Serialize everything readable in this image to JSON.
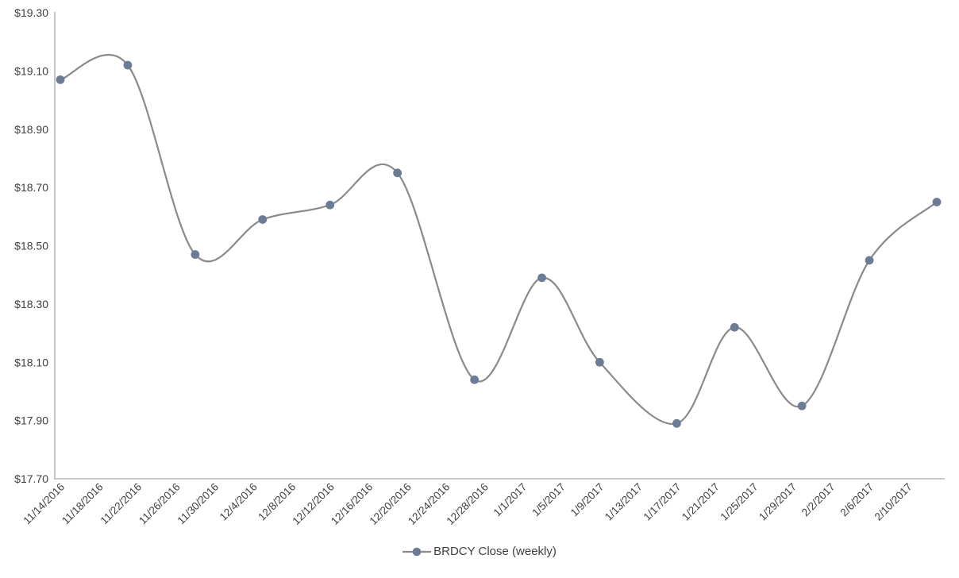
{
  "chart_data": {
    "type": "line",
    "title": "",
    "smooth": true,
    "grid": false,
    "legend": {
      "label": "BRDCY Close (weekly)",
      "position": "bottom-center"
    },
    "series": [
      {
        "name": "BRDCY Close (weekly)",
        "x": [
          "11/14/2016",
          "11/21/2016",
          "11/28/2016",
          "12/5/2016",
          "12/12/2016",
          "12/19/2016",
          "12/27/2016",
          "1/3/2017",
          "1/9/2017",
          "1/17/2017",
          "1/23/2017",
          "1/30/2017",
          "2/6/2017",
          "2/13/2017"
        ],
        "values": [
          19.07,
          19.12,
          18.47,
          18.59,
          18.64,
          18.75,
          18.04,
          18.39,
          18.1,
          17.89,
          18.22,
          17.95,
          18.45,
          18.65
        ]
      }
    ],
    "x_tick_labels": [
      "11/14/2016",
      "11/18/2016",
      "11/22/2016",
      "11/26/2016",
      "11/30/2016",
      "12/4/2016",
      "12/8/2016",
      "12/12/2016",
      "12/16/2016",
      "12/20/2016",
      "12/24/2016",
      "12/28/2016",
      "1/1/2017",
      "1/5/2017",
      "1/9/2017",
      "1/13/2017",
      "1/17/2017",
      "1/21/2017",
      "1/25/2017",
      "1/29/2017",
      "2/2/2017",
      "2/6/2017",
      "2/10/2017"
    ],
    "y_tick_labels": [
      "$19.30",
      "$19.10",
      "$18.90",
      "$18.70",
      "$18.50",
      "$18.30",
      "$18.10",
      "$17.90",
      "$17.70"
    ],
    "ylim": [
      17.7,
      19.3
    ],
    "y_tick_step": 0.2,
    "ylabel": "",
    "xlabel": "",
    "colors": {
      "line": "#8a8a8a",
      "marker": "#6c7c94",
      "axis": "#a6a6a6",
      "text": "#404040",
      "background": "#ffffff"
    }
  }
}
